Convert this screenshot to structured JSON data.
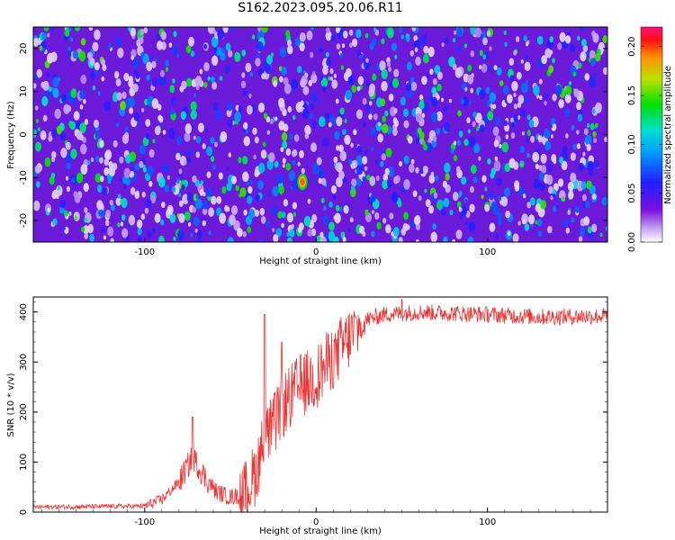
{
  "title": "S162.2023.095.20.06.R11",
  "chart_data": [
    {
      "type": "heatmap",
      "xlabel": "Height of straight line (km)",
      "ylabel": "Frequency (Hz)",
      "xlim": [
        -165,
        170
      ],
      "ylim": [
        -25,
        25
      ],
      "xticks": [
        -100,
        0,
        100
      ],
      "yticks": [
        -20,
        -10,
        0,
        10,
        20
      ],
      "colorbar": {
        "label": "Normalized spectral amplitude",
        "range": [
          0,
          0.22
        ],
        "ticks": [
          "0.00",
          "0.05",
          "0.10",
          "0.15",
          "0.20"
        ],
        "tick_values": [
          0,
          0.05,
          0.1,
          0.15,
          0.2
        ]
      },
      "description_peak": {
        "x": -8,
        "y": -11,
        "value": 0.21
      }
    },
    {
      "type": "line",
      "xlabel": "Height of straight line (km)",
      "ylabel": "SNR (10 * v/v)",
      "xlim": [
        -165,
        170
      ],
      "ylim": [
        0,
        430
      ],
      "xticks": [
        -100,
        0,
        100
      ],
      "yticks": [
        0,
        100,
        200,
        300,
        400
      ],
      "color": "#ee3333",
      "series_envelope": [
        {
          "x": -165,
          "y": 10
        },
        {
          "x": -100,
          "y": 12
        },
        {
          "x": -90,
          "y": 25
        },
        {
          "x": -80,
          "y": 60
        },
        {
          "x": -72,
          "y": 110
        },
        {
          "x": -65,
          "y": 70
        },
        {
          "x": -58,
          "y": 40
        },
        {
          "x": -50,
          "y": 30
        },
        {
          "x": -42,
          "y": 35
        },
        {
          "x": -35,
          "y": 80
        },
        {
          "x": -30,
          "y": 150
        },
        {
          "x": -25,
          "y": 170
        },
        {
          "x": -20,
          "y": 210
        },
        {
          "x": -10,
          "y": 250
        },
        {
          "x": 0,
          "y": 270
        },
        {
          "x": 10,
          "y": 310
        },
        {
          "x": 20,
          "y": 350
        },
        {
          "x": 30,
          "y": 385
        },
        {
          "x": 40,
          "y": 395
        },
        {
          "x": 60,
          "y": 400
        },
        {
          "x": 100,
          "y": 395
        },
        {
          "x": 130,
          "y": 390
        },
        {
          "x": 170,
          "y": 392
        }
      ],
      "spikes": [
        {
          "x": -72,
          "y": 190
        },
        {
          "x": -30,
          "y": 395
        },
        {
          "x": -20,
          "y": 340
        },
        {
          "x": 12,
          "y": 345
        },
        {
          "x": 50,
          "y": 425
        }
      ],
      "noise_amplitude": 22,
      "n_points": 1100
    }
  ]
}
